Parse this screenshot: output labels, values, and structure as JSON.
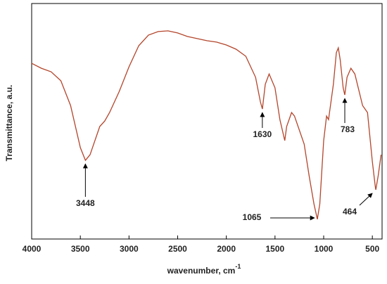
{
  "chart_data": {
    "type": "line",
    "xlabel": "wavenumber, cm",
    "xlabel_sup": "-1",
    "ylabel": "Transmittance, a.u.",
    "xlim": [
      4000,
      400
    ],
    "ylim": [
      0,
      100
    ],
    "xticks": [
      4000,
      3500,
      3000,
      2500,
      2000,
      1500,
      1000,
      500
    ],
    "x": [
      4000,
      3900,
      3800,
      3700,
      3600,
      3500,
      3448,
      3400,
      3300,
      3250,
      3200,
      3100,
      3000,
      2900,
      2800,
      2700,
      2600,
      2500,
      2400,
      2300,
      2200,
      2100,
      2000,
      1900,
      1800,
      1700,
      1650,
      1630,
      1600,
      1560,
      1500,
      1450,
      1400,
      1380,
      1330,
      1300,
      1200,
      1150,
      1100,
      1065,
      1040,
      1000,
      970,
      950,
      900,
      870,
      850,
      830,
      800,
      783,
      760,
      720,
      680,
      600,
      550,
      500,
      470,
      464,
      440,
      410
    ],
    "series": [
      {
        "color": "#b3452b",
        "values": [
          74.6,
          72.5,
          71.0,
          67.2,
          56.7,
          38.8,
          33.4,
          35.8,
          47.8,
          50.1,
          53.7,
          62.7,
          73.1,
          82.1,
          86.6,
          88.1,
          88.4,
          87.5,
          86.0,
          85.1,
          84.2,
          83.6,
          82.4,
          80.6,
          77.6,
          68.7,
          58.2,
          55.2,
          65.7,
          70.1,
          64.2,
          50.7,
          41.8,
          47.8,
          53.7,
          52.2,
          40.3,
          26.9,
          14.9,
          8.4,
          14.9,
          41.8,
          52.2,
          50.7,
          65.7,
          79.1,
          81.2,
          76.1,
          64.2,
          61.2,
          68.7,
          72.5,
          70.1,
          56.7,
          53.7,
          32.8,
          22.4,
          20.9,
          26.9,
          35.8
        ]
      }
    ],
    "annotations": [
      3448,
      1630,
      783,
      1065,
      464
    ]
  }
}
